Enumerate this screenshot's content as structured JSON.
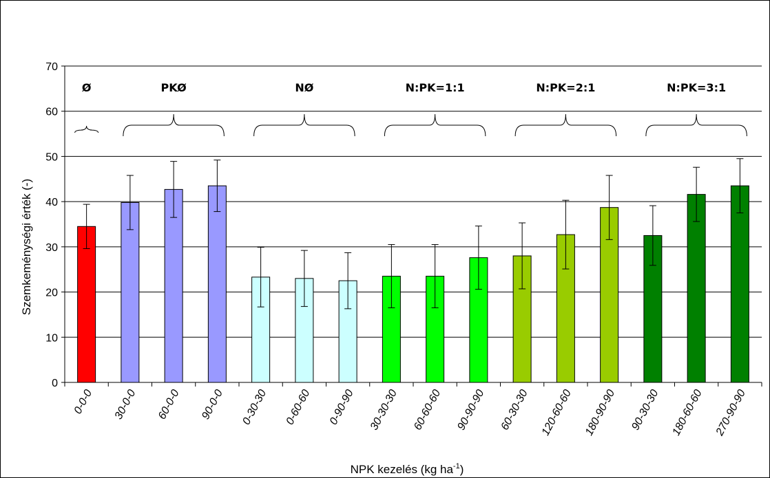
{
  "chart_data": {
    "type": "bar",
    "title": "",
    "xlabel": "NPK kezelés (kg ha",
    "xlabel_sup": "-1",
    "xlabel_end": ")",
    "ylabel": "Szemkeménységi érték (-)",
    "ylim": [
      0,
      70
    ],
    "yticks": [
      "0",
      "10",
      "20",
      "30",
      "40",
      "50",
      "60",
      "70"
    ],
    "grid": true,
    "categories": [
      "0-0-0",
      "30-0-0",
      "60-0-0",
      "90-0-0",
      "0-30-30",
      "0-60-60",
      "0-90-90",
      "30-30-30",
      "60-60-60",
      "90-90-90",
      "60-30-30",
      "120-60-60",
      "180-90-90",
      "90-30-30",
      "180-60-60",
      "270-90-90"
    ],
    "values": [
      34.5,
      39.8,
      42.7,
      43.5,
      23.3,
      23.0,
      22.5,
      23.5,
      23.5,
      27.6,
      28.0,
      32.7,
      38.7,
      32.5,
      41.6,
      43.5
    ],
    "error": [
      4.9,
      6.0,
      6.2,
      5.7,
      6.6,
      6.2,
      6.2,
      7.0,
      7.0,
      7.0,
      7.3,
      7.6,
      7.1,
      6.6,
      6.0,
      6.0
    ],
    "bar_colors": [
      "#ff0000",
      "#9999ff",
      "#9999ff",
      "#9999ff",
      "#ccffff",
      "#ccffff",
      "#ccffff",
      "#00ff00",
      "#00ff00",
      "#00ff00",
      "#99cc00",
      "#99cc00",
      "#99cc00",
      "#008000",
      "#008000",
      "#008000"
    ],
    "groups": [
      {
        "label": "Ø",
        "start": 0,
        "end": 0
      },
      {
        "label": "PKØ",
        "start": 1,
        "end": 3
      },
      {
        "label": "NØ",
        "start": 4,
        "end": 6
      },
      {
        "label": "N:PK=1:1",
        "start": 7,
        "end": 9
      },
      {
        "label": "N:PK=2:1",
        "start": 10,
        "end": 12
      },
      {
        "label": "N:PK=3:1",
        "start": 13,
        "end": 15
      }
    ]
  }
}
